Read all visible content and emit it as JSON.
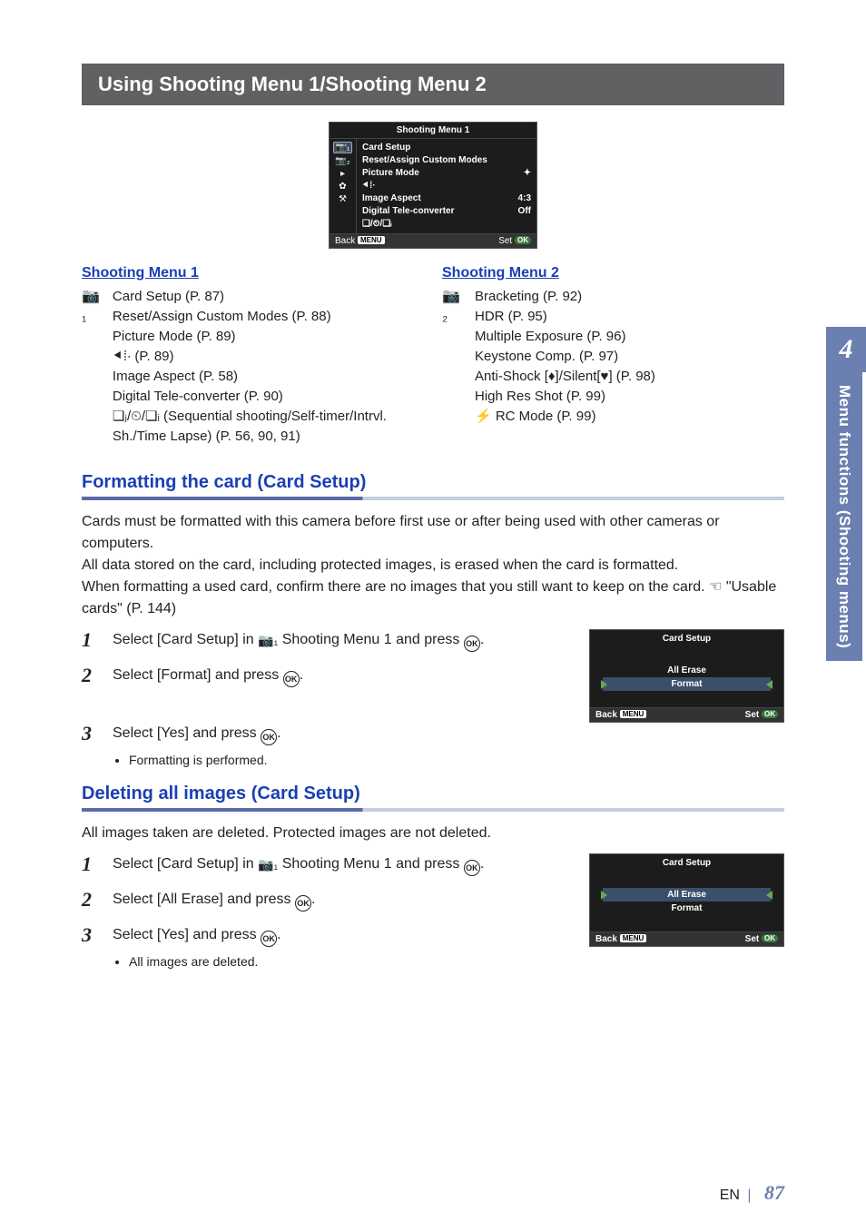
{
  "title": "Using Shooting Menu 1/Shooting Menu 2",
  "top_menu": {
    "title": "Shooting Menu 1",
    "left_icons": [
      "📷₁",
      "📷₂",
      "▸",
      "✿",
      "⚒"
    ],
    "rows": [
      {
        "label": "Card Setup",
        "value": ""
      },
      {
        "label": "Reset/Assign Custom Modes",
        "value": ""
      },
      {
        "label": "Picture Mode",
        "value": "✦"
      },
      {
        "label": "⯇⁞∙",
        "value": ""
      },
      {
        "label": "Image Aspect",
        "value": "4:3"
      },
      {
        "label": "Digital Tele-converter",
        "value": "Off"
      },
      {
        "label": "❏/⏲/❏ᵢ",
        "value": ""
      }
    ],
    "back": "Back",
    "menu_badge": "MENU",
    "set": "Set",
    "ok_badge": "OK"
  },
  "menu_cols": {
    "col1": {
      "title": "Shooting Menu 1",
      "icon": "📷₁",
      "items": [
        "Card Setup (P. 87)",
        "Reset/Assign Custom Modes (P. 88)",
        "Picture Mode (P. 89)",
        "⯇⁞∙ (P. 89)",
        "Image Aspect (P. 58)",
        "Digital Tele-converter (P. 90)",
        "❏ⱼ/⏲/❏ᵢ (Sequential shooting/Self-timer/Intrvl. Sh./Time Lapse) (P. 56, 90, 91)"
      ]
    },
    "col2": {
      "title": "Shooting Menu 2",
      "icon": "📷₂",
      "items": [
        "Bracketing (P. 92)",
        "HDR (P. 95)",
        "Multiple Exposure (P. 96)",
        "Keystone Comp. (P. 97)",
        "Anti-Shock [♦]/Silent[♥] (P. 98)",
        "High Res Shot (P. 99)",
        "⚡ RC Mode (P. 99)"
      ]
    }
  },
  "section1": {
    "title": "Formatting the card (Card Setup)",
    "para": "Cards must be formatted with this camera before first use or after being used with other cameras or computers.\nAll data stored on the card, including protected images, is erased when the card is formatted.\nWhen formatting a used card, confirm there are no images that you still want to keep on the card. ☞ \"Usable cards\" (P. 144)",
    "steps": [
      "Select [Card Setup] in 📷₁ Shooting Menu 1 and press ⊚.",
      "Select [Format] and press ⊚.",
      "Select [Yes] and press ⊚."
    ],
    "step3_bullet": "Formatting is performed.",
    "screen": {
      "title": "Card Setup",
      "items": [
        "All Erase",
        "Format"
      ],
      "selected": 1,
      "back": "Back",
      "menu_badge": "MENU",
      "set": "Set",
      "ok_badge": "OK"
    }
  },
  "section2": {
    "title": "Deleting all images (Card Setup)",
    "para": "All images taken are deleted. Protected images are not deleted.",
    "steps": [
      "Select [Card Setup] in 📷₁ Shooting Menu 1 and press ⊚.",
      "Select [All Erase] and press ⊚.",
      "Select [Yes] and press ⊚."
    ],
    "step3_bullet": "All images are deleted.",
    "screen": {
      "title": "Card Setup",
      "items": [
        "All Erase",
        "Format"
      ],
      "selected": 0,
      "back": "Back",
      "menu_badge": "MENU",
      "set": "Set",
      "ok_badge": "OK"
    }
  },
  "side_tab": {
    "num": "4",
    "label": "Menu functions (Shooting menus)"
  },
  "footer": {
    "en": "EN",
    "page": "87"
  },
  "colors": {
    "title_bar": "#5f6163",
    "accent": "#6b7fb0",
    "link": "#1a3fb5",
    "screen_bg": "#1c1c1c",
    "screen_sel": "#3a4f6a",
    "ok_green": "#3a7a3a"
  }
}
